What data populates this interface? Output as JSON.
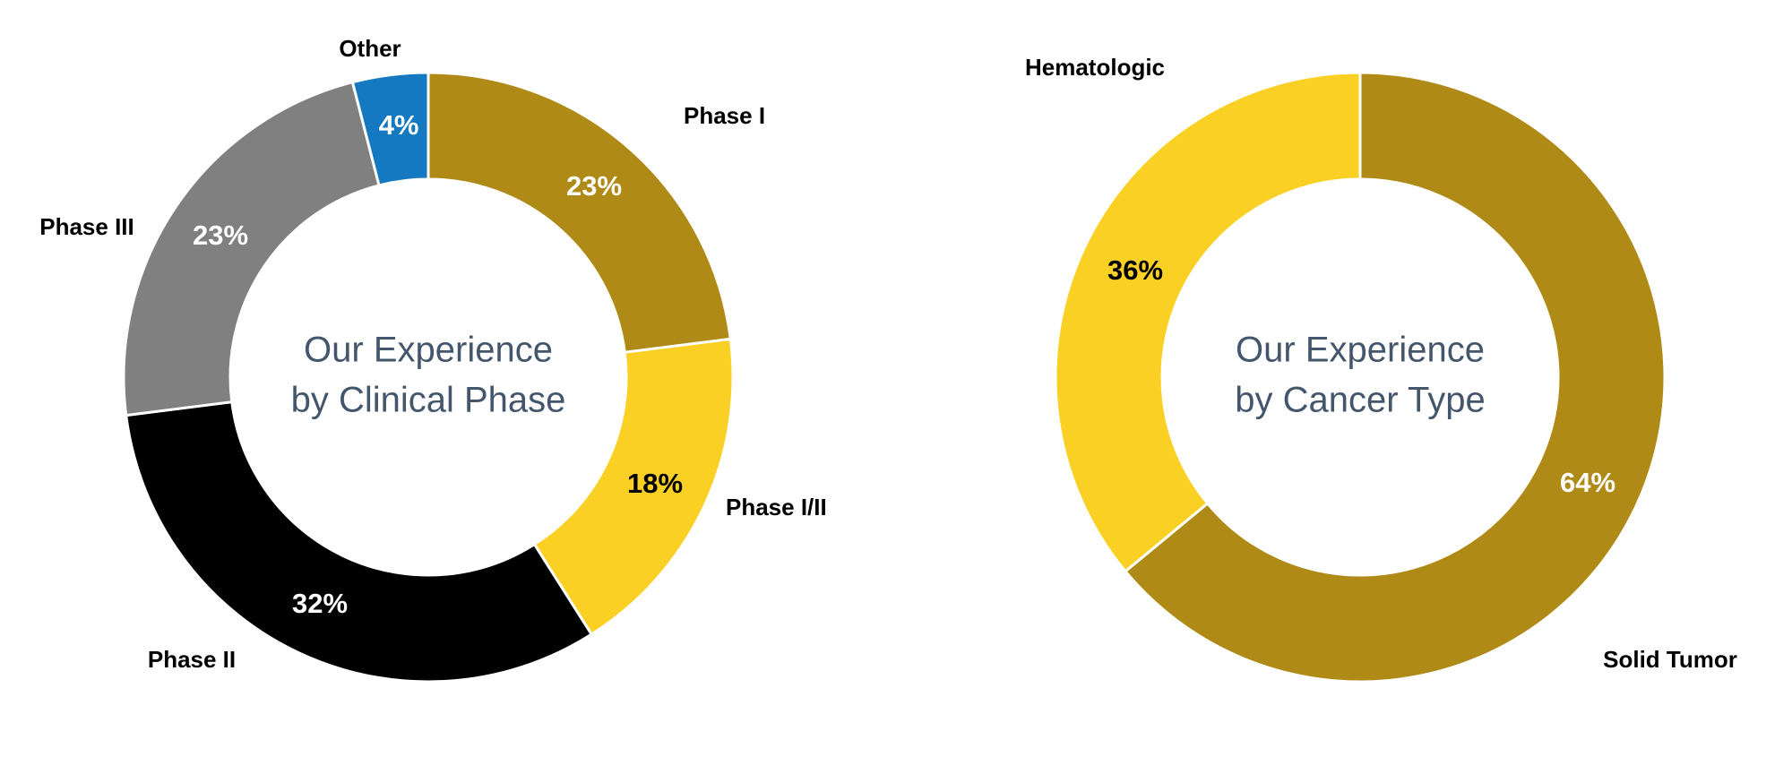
{
  "chart_data": [
    {
      "type": "pie",
      "variant": "donut",
      "title": [
        "Our Experience",
        "by Clinical Phase"
      ],
      "categories": [
        "Phase I",
        "Phase I/II",
        "Phase II",
        "Phase III",
        "Other"
      ],
      "values": [
        23,
        18,
        32,
        23,
        4
      ],
      "data_labels": [
        "23%",
        "18%",
        "32%",
        "23%",
        "4%"
      ],
      "colors": [
        "#B08A16",
        "#F9D023",
        "#000000",
        "#808080",
        "#1479C0"
      ],
      "label_colors": [
        "#FFFFFF",
        "#000000",
        "#FFFFFF",
        "#FFFFFF",
        "#FFFFFF"
      ]
    },
    {
      "type": "pie",
      "variant": "donut",
      "title": [
        "Our Experience",
        "by Cancer Type"
      ],
      "categories": [
        "Solid Tumor",
        "Hematologic"
      ],
      "values": [
        64,
        36
      ],
      "data_labels": [
        "64%",
        "36%"
      ],
      "colors": [
        "#B08A16",
        "#F9D023"
      ],
      "label_colors": [
        "#FFFFFF",
        "#000000"
      ]
    }
  ]
}
